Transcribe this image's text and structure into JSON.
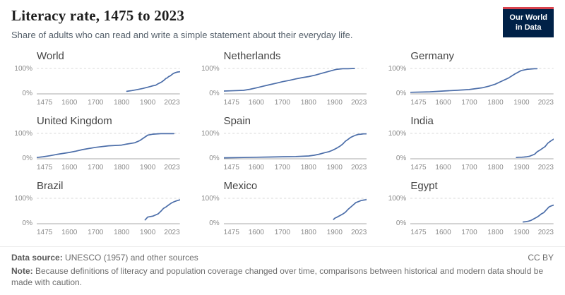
{
  "header": {
    "title": "Literacy rate, 1475 to 2023",
    "subtitle": "Share of adults who can read and write a simple statement about their everyday life.",
    "logo": {
      "line1": "Our World",
      "line2": "in Data"
    }
  },
  "axis": {
    "x_min": 1475,
    "x_max": 2023,
    "x_ticks": [
      1475,
      1600,
      1700,
      1800,
      1900,
      2023
    ],
    "y_min": 0,
    "y_max": 100,
    "y_top_label": "100%",
    "y_bottom_label": "0%",
    "grid": "horizontal dashed at 100%, solid baseline at 0%",
    "legend": "none"
  },
  "chart_data": [
    {
      "type": "line",
      "title": "World",
      "x": [
        1820,
        1840,
        1860,
        1880,
        1900,
        1910,
        1920,
        1930,
        1940,
        1950,
        1955,
        1960,
        1965,
        1970,
        1975,
        1980,
        1985,
        1990,
        1995,
        2000,
        2005,
        2010,
        2015,
        2023
      ],
      "y": [
        10,
        13,
        17,
        21,
        26,
        29,
        32,
        34,
        40,
        45,
        48,
        52,
        56,
        61,
        63,
        68,
        70,
        74,
        78,
        81,
        83,
        85,
        86,
        87
      ]
    },
    {
      "type": "line",
      "title": "Netherlands",
      "x": [
        1475,
        1500,
        1550,
        1575,
        1600,
        1625,
        1650,
        1675,
        1700,
        1725,
        1750,
        1775,
        1800,
        1825,
        1850,
        1875,
        1900,
        1910,
        1930,
        1950,
        1975
      ],
      "y": [
        11,
        12,
        14,
        18,
        24,
        30,
        36,
        42,
        48,
        53,
        59,
        64,
        68,
        74,
        81,
        88,
        95,
        97,
        99,
        99,
        100
      ]
    },
    {
      "type": "line",
      "title": "Germany",
      "x": [
        1475,
        1550,
        1600,
        1650,
        1700,
        1750,
        1775,
        1800,
        1825,
        1850,
        1875,
        1900,
        1925,
        1950,
        1960
      ],
      "y": [
        6,
        8,
        11,
        14,
        17,
        24,
        30,
        38,
        50,
        62,
        78,
        92,
        97,
        99,
        99
      ]
    },
    {
      "type": "line",
      "title": "United Kingdom",
      "x": [
        1475,
        1500,
        1525,
        1550,
        1600,
        1625,
        1650,
        1700,
        1750,
        1800,
        1820,
        1850,
        1870,
        1890,
        1900,
        1920,
        1950,
        1980,
        2000
      ],
      "y": [
        5,
        8,
        12,
        17,
        25,
        30,
        36,
        45,
        51,
        54,
        58,
        63,
        72,
        86,
        93,
        97,
        99,
        99,
        99
      ]
    },
    {
      "type": "line",
      "title": "Spain",
      "x": [
        1475,
        1550,
        1600,
        1650,
        1700,
        1750,
        1800,
        1820,
        1840,
        1860,
        1877,
        1887,
        1900,
        1910,
        1920,
        1930,
        1940,
        1950,
        1960,
        1970,
        1980,
        1990,
        2000,
        2010,
        2023
      ],
      "y": [
        4,
        5,
        6,
        7,
        8,
        9,
        11,
        14,
        18,
        24,
        28,
        32,
        38,
        44,
        50,
        58,
        69,
        76,
        84,
        89,
        93,
        96,
        97,
        98,
        98
      ]
    },
    {
      "type": "line",
      "title": "India",
      "x": [
        1881,
        1891,
        1901,
        1911,
        1921,
        1931,
        1941,
        1951,
        1961,
        1971,
        1981,
        1991,
        2001,
        2011,
        2023
      ],
      "y": [
        5,
        6,
        6,
        7,
        8,
        10,
        14,
        18,
        28,
        34,
        41,
        48,
        61,
        69,
        77
      ]
    },
    {
      "type": "line",
      "title": "Brazil",
      "x": [
        1890,
        1900,
        1920,
        1940,
        1950,
        1960,
        1970,
        1980,
        1990,
        2000,
        2010,
        2023
      ],
      "y": [
        15,
        26,
        30,
        39,
        49,
        60,
        66,
        74,
        81,
        86,
        90,
        94
      ]
    },
    {
      "type": "line",
      "title": "Mexico",
      "x": [
        1895,
        1900,
        1910,
        1921,
        1930,
        1940,
        1950,
        1960,
        1970,
        1980,
        1990,
        2000,
        2010,
        2023
      ],
      "y": [
        17,
        22,
        27,
        33,
        38,
        45,
        56,
        65,
        74,
        83,
        87,
        91,
        93,
        95
      ]
    },
    {
      "type": "line",
      "title": "Egypt",
      "x": [
        1907,
        1917,
        1927,
        1937,
        1947,
        1960,
        1966,
        1976,
        1986,
        1996,
        2006,
        2017,
        2023
      ],
      "y": [
        7,
        8,
        10,
        13,
        19,
        26,
        30,
        38,
        44,
        55,
        66,
        71,
        73
      ]
    }
  ],
  "footer": {
    "source_label": "Data source:",
    "source_text": " UNESCO (1957) and other sources",
    "license": "CC BY",
    "note_label": "Note:",
    "note_text": " Because definitions of literacy and population coverage changed over time, comparisons between historical and modern data should be made with caution."
  },
  "colors": {
    "line": "#4C6EA9",
    "logo_bg": "#002147",
    "logo_accent": "#D8434E",
    "grid_dashed": "#d9d9d9",
    "baseline": "#a8a8a8"
  }
}
